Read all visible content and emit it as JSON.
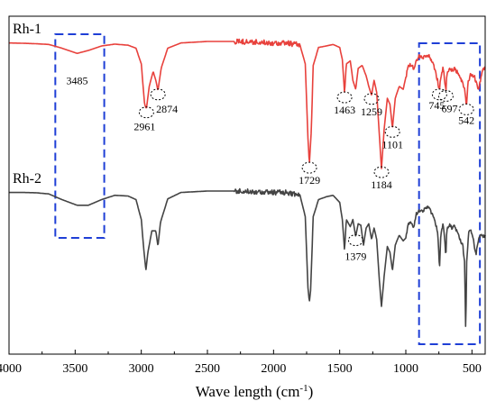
{
  "chart_data": {
    "type": "line",
    "xlabel": "Wave length (cm",
    "xlabel_sup": "-1",
    "xlabel_close": ")",
    "ylabel": "",
    "xlim": [
      4000,
      400
    ],
    "x_reversed": true,
    "grid": false,
    "x_ticks": [
      4000,
      3500,
      3000,
      2500,
      2000,
      1500,
      1000,
      500
    ],
    "x_tick_labels": [
      "4000",
      "3500",
      "3000",
      "2500",
      "2000",
      "1500",
      "1000",
      "500"
    ],
    "series": [
      {
        "name": "Rh-1",
        "color": "#e8413c",
        "points": [
          [
            4000,
            0.1
          ],
          [
            3900,
            0.12
          ],
          [
            3800,
            0.15
          ],
          [
            3700,
            0.2
          ],
          [
            3600,
            0.45
          ],
          [
            3485,
            0.8
          ],
          [
            3400,
            0.6
          ],
          [
            3300,
            0.3
          ],
          [
            3200,
            0.18
          ],
          [
            3100,
            0.25
          ],
          [
            3040,
            0.45
          ],
          [
            3000,
            1.5
          ],
          [
            2975,
            4.2
          ],
          [
            2961,
            4.5
          ],
          [
            2940,
            3.0
          ],
          [
            2910,
            2.0
          ],
          [
            2890,
            2.6
          ],
          [
            2874,
            3.3
          ],
          [
            2850,
            1.8
          ],
          [
            2800,
            0.45
          ],
          [
            2700,
            0.1
          ],
          [
            2500,
            0.0
          ],
          [
            2300,
            0.0
          ],
          [
            2100,
            0.05
          ],
          [
            2000,
            0.1
          ],
          [
            1900,
            0.1
          ],
          [
            1800,
            0.25
          ],
          [
            1760,
            1.5
          ],
          [
            1740,
            6.5
          ],
          [
            1729,
            8.2
          ],
          [
            1715,
            6.0
          ],
          [
            1700,
            1.6
          ],
          [
            1660,
            0.4
          ],
          [
            1600,
            0.3
          ],
          [
            1550,
            0.2
          ],
          [
            1500,
            0.4
          ],
          [
            1480,
            1.2
          ],
          [
            1463,
            3.5
          ],
          [
            1450,
            1.5
          ],
          [
            1420,
            1.3
          ],
          [
            1400,
            2.6
          ],
          [
            1379,
            3.2
          ],
          [
            1360,
            1.8
          ],
          [
            1330,
            1.6
          ],
          [
            1300,
            2.3
          ],
          [
            1280,
            3.0
          ],
          [
            1259,
            3.6
          ],
          [
            1240,
            2.6
          ],
          [
            1220,
            3.4
          ],
          [
            1200,
            6.3
          ],
          [
            1184,
            8.5
          ],
          [
            1165,
            6.0
          ],
          [
            1140,
            3.8
          ],
          [
            1120,
            4.2
          ],
          [
            1101,
            5.8
          ],
          [
            1080,
            3.8
          ],
          [
            1050,
            3.0
          ],
          [
            1020,
            3.2
          ],
          [
            1000,
            2.4
          ],
          [
            980,
            1.6
          ],
          [
            960,
            1.6
          ],
          [
            940,
            1.8
          ],
          [
            920,
            1.3
          ],
          [
            900,
            1.0
          ],
          [
            870,
            1.1
          ],
          [
            840,
            0.9
          ],
          [
            820,
            1.0
          ],
          [
            800,
            1.4
          ],
          [
            780,
            1.9
          ],
          [
            760,
            2.6
          ],
          [
            745,
            3.3
          ],
          [
            735,
            2.3
          ],
          [
            720,
            1.8
          ],
          [
            710,
            2.2
          ],
          [
            697,
            3.4
          ],
          [
            690,
            2.2
          ],
          [
            670,
            1.8
          ],
          [
            650,
            1.9
          ],
          [
            630,
            1.8
          ],
          [
            600,
            2.2
          ],
          [
            580,
            2.6
          ],
          [
            560,
            3.0
          ],
          [
            550,
            3.5
          ],
          [
            542,
            4.3
          ],
          [
            530,
            2.8
          ],
          [
            510,
            2.2
          ],
          [
            480,
            2.4
          ],
          [
            450,
            3.2
          ],
          [
            420,
            2.0
          ],
          [
            400,
            1.7
          ]
        ]
      },
      {
        "name": "Rh-2",
        "color": "#444444",
        "points": [
          [
            4000,
            0.1
          ],
          [
            3900,
            0.1
          ],
          [
            3800,
            0.12
          ],
          [
            3700,
            0.2
          ],
          [
            3600,
            0.6
          ],
          [
            3485,
            1.0
          ],
          [
            3400,
            1.0
          ],
          [
            3300,
            0.6
          ],
          [
            3200,
            0.3
          ],
          [
            3100,
            0.35
          ],
          [
            3040,
            0.6
          ],
          [
            3000,
            2.0
          ],
          [
            2980,
            4.2
          ],
          [
            2965,
            5.6
          ],
          [
            2950,
            4.3
          ],
          [
            2920,
            2.8
          ],
          [
            2890,
            2.8
          ],
          [
            2874,
            3.9
          ],
          [
            2855,
            2.2
          ],
          [
            2800,
            0.55
          ],
          [
            2700,
            0.1
          ],
          [
            2500,
            0.0
          ],
          [
            2300,
            0.0
          ],
          [
            2100,
            0.05
          ],
          [
            2000,
            0.1
          ],
          [
            1900,
            0.1
          ],
          [
            1800,
            0.3
          ],
          [
            1760,
            1.8
          ],
          [
            1740,
            6.8
          ],
          [
            1729,
            7.8
          ],
          [
            1720,
            7.0
          ],
          [
            1700,
            1.8
          ],
          [
            1660,
            0.6
          ],
          [
            1600,
            0.4
          ],
          [
            1550,
            0.3
          ],
          [
            1500,
            0.8
          ],
          [
            1480,
            2.0
          ],
          [
            1463,
            4.2
          ],
          [
            1450,
            2.0
          ],
          [
            1420,
            2.5
          ],
          [
            1400,
            2.0
          ],
          [
            1379,
            3.2
          ],
          [
            1360,
            2.3
          ],
          [
            1340,
            2.4
          ],
          [
            1320,
            3.8
          ],
          [
            1300,
            2.6
          ],
          [
            1280,
            2.3
          ],
          [
            1259,
            3.4
          ],
          [
            1240,
            2.6
          ],
          [
            1220,
            3.4
          ],
          [
            1200,
            6.3
          ],
          [
            1184,
            8.1
          ],
          [
            1165,
            6.1
          ],
          [
            1140,
            3.9
          ],
          [
            1120,
            4.3
          ],
          [
            1101,
            5.6
          ],
          [
            1080,
            3.8
          ],
          [
            1050,
            3.1
          ],
          [
            1020,
            3.5
          ],
          [
            1000,
            3.3
          ],
          [
            980,
            2.3
          ],
          [
            960,
            2.2
          ],
          [
            940,
            2.6
          ],
          [
            920,
            1.6
          ],
          [
            900,
            1.4
          ],
          [
            870,
            1.4
          ],
          [
            840,
            1.1
          ],
          [
            820,
            1.3
          ],
          [
            800,
            1.6
          ],
          [
            780,
            2.1
          ],
          [
            760,
            2.8
          ],
          [
            745,
            5.5
          ],
          [
            735,
            3.0
          ],
          [
            720,
            2.4
          ],
          [
            710,
            3.0
          ],
          [
            697,
            4.6
          ],
          [
            690,
            2.6
          ],
          [
            670,
            2.4
          ],
          [
            650,
            2.6
          ],
          [
            630,
            2.4
          ],
          [
            610,
            3.0
          ],
          [
            590,
            3.4
          ],
          [
            570,
            3.8
          ],
          [
            555,
            5.0
          ],
          [
            547,
            10.1
          ],
          [
            540,
            5.0
          ],
          [
            525,
            3.0
          ],
          [
            510,
            2.6
          ],
          [
            490,
            3.4
          ],
          [
            470,
            4.5
          ],
          [
            450,
            3.4
          ],
          [
            430,
            3.1
          ],
          [
            400,
            3.2
          ]
        ]
      }
    ],
    "annotations": [
      {
        "series": "Rh-1",
        "label": "3485",
        "x": 3485,
        "circled": false
      },
      {
        "series": "Rh-1",
        "label": "2961",
        "x": 2961,
        "circled": true
      },
      {
        "series": "Rh-1",
        "label": "2874",
        "x": 2874,
        "circled": true
      },
      {
        "series": "Rh-1",
        "label": "1729",
        "x": 1729,
        "circled": true
      },
      {
        "series": "Rh-1",
        "label": "1463",
        "x": 1463,
        "circled": true
      },
      {
        "series": "Rh-1",
        "label": "1259",
        "x": 1259,
        "circled": true
      },
      {
        "series": "Rh-1",
        "label": "1184",
        "x": 1184,
        "circled": true
      },
      {
        "series": "Rh-1",
        "label": "1101",
        "x": 1101,
        "circled": true
      },
      {
        "series": "Rh-1",
        "label": "745",
        "x": 745,
        "circled": true
      },
      {
        "series": "Rh-1",
        "label": "697",
        "x": 697,
        "circled": true
      },
      {
        "series": "Rh-1",
        "label": "542",
        "x": 542,
        "circled": true
      },
      {
        "series": "Rh-2",
        "label": "1379",
        "x": 1379,
        "circled": true
      }
    ],
    "highlight_regions": [
      {
        "x_from": 3650,
        "x_to": 3280,
        "style": "dashed",
        "color": "#1f3fd6"
      },
      {
        "x_from": 900,
        "x_to": 440,
        "style": "dashed",
        "color": "#1f3fd6"
      }
    ]
  }
}
